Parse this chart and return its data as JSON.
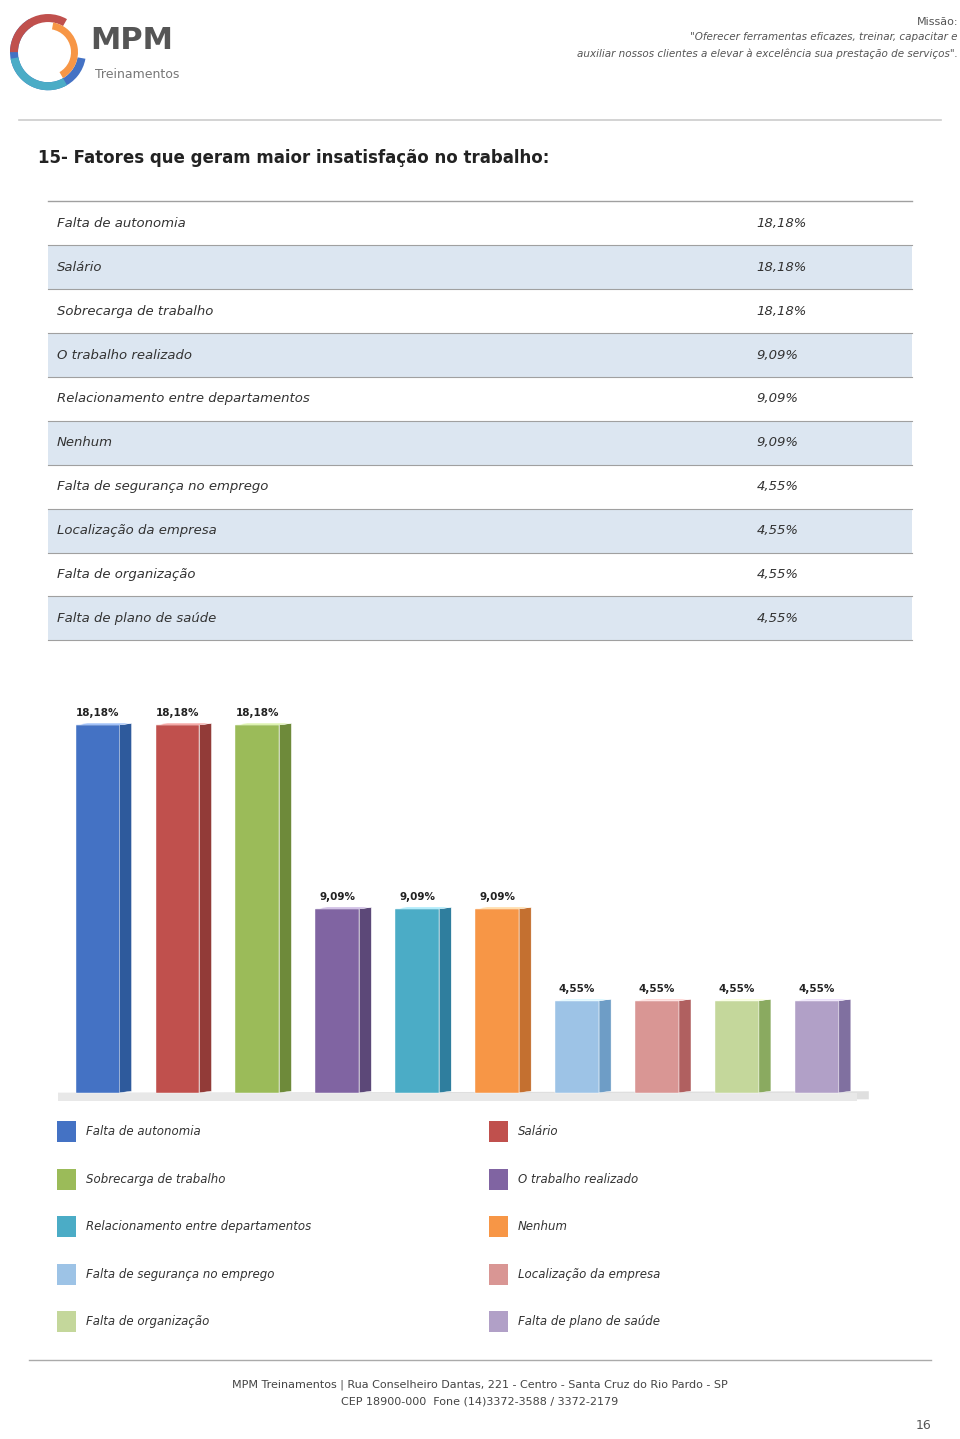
{
  "title": "15- Fatores que geram maior insatisfação no trabalho:",
  "categories": [
    "Falta de autonomia",
    "Salário",
    "Sobrecarga de trabalho",
    "O trabalho realizado",
    "Relacionamento entre departamentos",
    "Nenhum",
    "Falta de segurança no emprego",
    "Localização da empresa",
    "Falta de organização",
    "Falta de plano de saúde"
  ],
  "values": [
    18.18,
    18.18,
    18.18,
    9.09,
    9.09,
    9.09,
    4.55,
    4.55,
    4.55,
    4.55
  ],
  "value_labels": [
    "18,18%",
    "18,18%",
    "18,18%",
    "9,09%",
    "9,09%",
    "9,09%",
    "4,55%",
    "4,55%",
    "4,55%",
    "4,55%"
  ],
  "bar_colors": [
    "#4472C4",
    "#C0504D",
    "#9BBB59",
    "#8064A2",
    "#4BACC6",
    "#F79646",
    "#9DC3E6",
    "#D99694",
    "#C4D79B",
    "#B1A0C7"
  ],
  "bar_colors_dark": [
    "#2E5A9C",
    "#923B38",
    "#6E8A3A",
    "#5C4878",
    "#2F7E9E",
    "#C47030",
    "#6E9DC6",
    "#B06060",
    "#8AAA60",
    "#8070A0"
  ],
  "table_rows": [
    [
      "Falta de autonomia",
      "18,18%"
    ],
    [
      "Salário",
      "18,18%"
    ],
    [
      "Sobrecarga de trabalho",
      "18,18%"
    ],
    [
      "O trabalho realizado",
      "9,09%"
    ],
    [
      "Relacionamento entre departamentos",
      "9,09%"
    ],
    [
      "Nenhum",
      "9,09%"
    ],
    [
      "Falta de segurança no emprego",
      "4,55%"
    ],
    [
      "Localização da empresa",
      "4,55%"
    ],
    [
      "Falta de organização",
      "4,55%"
    ],
    [
      "Falta de plano de saúde",
      "4,55%"
    ]
  ],
  "table_row_bg": [
    "#FFFFFF",
    "#DCE6F1",
    "#FFFFFF",
    "#DCE6F1",
    "#FFFFFF",
    "#DCE6F1",
    "#FFFFFF",
    "#DCE6F1",
    "#FFFFFF",
    "#DCE6F1"
  ],
  "mission_line1": "Missão:",
  "mission_line2": "\"Oferecer ferramentas eficazes, treinar, capacitar e",
  "mission_line3": "auxiliar nossos clientes a elevar à excelência sua prestação de serviços\".",
  "footer_text": "MPM Treinamentos | Rua Conselheiro Dantas, 221 - Centro - Santa Cruz do Rio Pardo - SP\nCEP 18900-000  Fone (14)3372-3588 / 3372-2179",
  "page_number": "16",
  "legend_entries": [
    "Falta de autonomia",
    "Salário",
    "Sobrecarga de trabalho",
    "O trabalho realizado",
    "Relacionamento entre departamentos",
    "Nenhum",
    "Falta de segurança no emprego",
    "Localização da empresa",
    "Falta de organização",
    "Falta de plano de saúde"
  ],
  "bg_color": "#FFFFFF",
  "ylim_max": 22
}
